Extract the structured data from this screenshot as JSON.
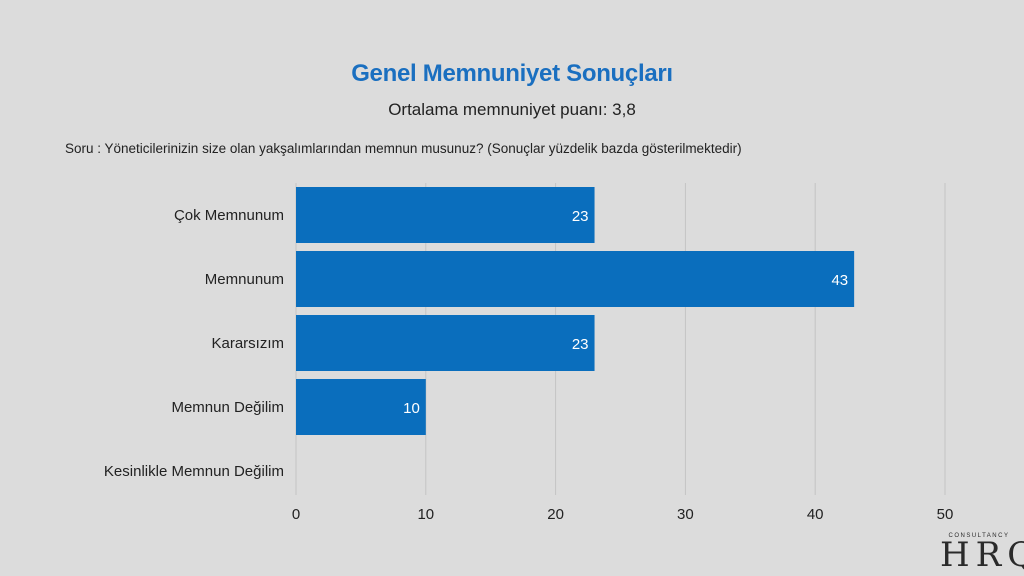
{
  "title": "Genel Memnuniyet Sonuçları",
  "subtitle": "Ortalama memnuniyet puanı: 3,8",
  "question": "Soru : Yöneticilerinizin size olan yakşalımlarından memnun musunuz? (Sonuçlar yüzdelik bazda gösterilmektedir)",
  "logo": {
    "letters": "HRQ",
    "sub": "CONSULTANCY"
  },
  "chart_data": {
    "type": "bar",
    "orientation": "horizontal",
    "categories": [
      "Çok Memnunum",
      "Memnunum",
      "Kararsızım",
      "Memnun Değilim",
      "Kesinlikle Memnun Değilim"
    ],
    "values": [
      23,
      43,
      23,
      10,
      0
    ],
    "data_labels": [
      "23",
      "43",
      "23",
      "10",
      ""
    ],
    "xlim": [
      0,
      50
    ],
    "xticks": [
      0,
      10,
      20,
      30,
      40,
      50
    ],
    "grid": true,
    "bar_color": "#0a6ebd",
    "label_color": "#ffffff"
  }
}
